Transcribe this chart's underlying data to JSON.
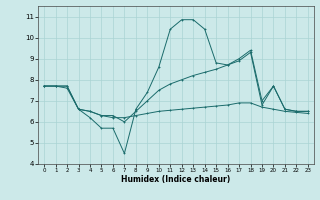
{
  "xlabel": "Humidex (Indice chaleur)",
  "xlim": [
    -0.5,
    23.5
  ],
  "ylim": [
    4,
    11.5
  ],
  "xticks": [
    0,
    1,
    2,
    3,
    4,
    5,
    6,
    7,
    8,
    9,
    10,
    11,
    12,
    13,
    14,
    15,
    16,
    17,
    18,
    19,
    20,
    21,
    22,
    23
  ],
  "yticks": [
    4,
    5,
    6,
    7,
    8,
    9,
    10,
    11
  ],
  "bg_color": "#cce9e9",
  "grid_color": "#aad4d4",
  "line_color": "#1a6b6b",
  "line1_x": [
    0,
    1,
    2,
    3,
    4,
    5,
    6,
    7,
    8,
    9,
    10,
    11,
    12,
    13,
    14,
    15,
    16,
    17,
    18,
    19,
    20,
    21,
    22,
    23
  ],
  "line1_y": [
    7.7,
    7.7,
    7.7,
    6.6,
    6.2,
    5.7,
    5.7,
    4.5,
    6.6,
    7.4,
    8.6,
    10.4,
    10.85,
    10.85,
    10.4,
    8.8,
    8.7,
    9.0,
    9.4,
    7.0,
    7.7,
    6.6,
    6.5,
    6.5
  ],
  "line2_x": [
    0,
    1,
    2,
    3,
    4,
    5,
    6,
    7,
    8,
    9,
    10,
    11,
    12,
    13,
    14,
    15,
    16,
    17,
    18,
    19,
    20,
    21,
    22,
    23
  ],
  "line2_y": [
    7.7,
    7.7,
    7.6,
    6.6,
    6.5,
    6.3,
    6.2,
    6.2,
    6.3,
    6.4,
    6.5,
    6.55,
    6.6,
    6.65,
    6.7,
    6.75,
    6.8,
    6.9,
    6.9,
    6.7,
    6.6,
    6.5,
    6.45,
    6.4
  ],
  "line3_x": [
    0,
    1,
    2,
    3,
    4,
    5,
    6,
    7,
    8,
    9,
    10,
    11,
    12,
    13,
    14,
    15,
    16,
    17,
    18,
    19,
    20,
    21,
    22,
    23
  ],
  "line3_y": [
    7.7,
    7.7,
    7.7,
    6.6,
    6.5,
    6.3,
    6.3,
    6.0,
    6.5,
    7.0,
    7.5,
    7.8,
    8.0,
    8.2,
    8.35,
    8.5,
    8.7,
    8.9,
    9.3,
    6.8,
    7.7,
    6.6,
    6.5,
    6.5
  ]
}
